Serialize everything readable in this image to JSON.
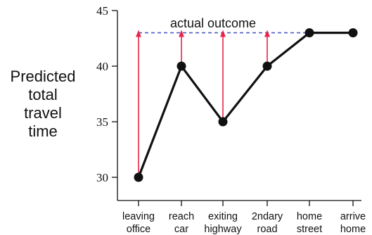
{
  "chart_data": {
    "type": "line",
    "categories": [
      [
        "leaving",
        "office"
      ],
      [
        "reach",
        "car"
      ],
      [
        "exiting",
        "highway"
      ],
      [
        "2ndary",
        "road"
      ],
      [
        "home",
        "street"
      ],
      [
        "arrive",
        "home"
      ]
    ],
    "series": [
      {
        "values": [
          30,
          40,
          35,
          40,
          43,
          43
        ]
      }
    ],
    "ylabel_lines": [
      "Predicted",
      "total",
      "travel",
      "time"
    ],
    "yticks": [
      30,
      35,
      40,
      45
    ],
    "ylim": [
      29,
      45
    ],
    "reference_line": {
      "value": 43,
      "label": "actual outcome",
      "style": "dashed"
    },
    "arrows_to_reference_from_categories": [
      0,
      1,
      2,
      3
    ],
    "colors": {
      "line": "#111111",
      "marker": "#111111",
      "reference": "#4b5bc4",
      "arrow": "#e8244a"
    },
    "grid": false,
    "legend": "none"
  }
}
